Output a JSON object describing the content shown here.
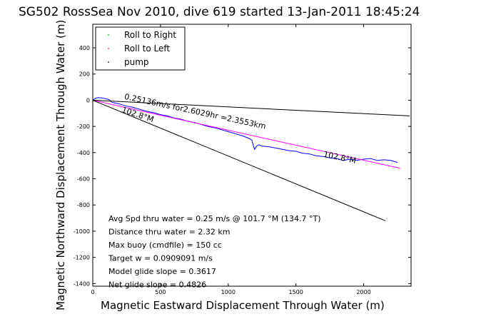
{
  "chart_data": {
    "type": "line",
    "title": "SG502 RossSea Nov 2010, dive 619 started 13-Jan-2011 18:45:24",
    "xlabel": "Magnetic Eastward Displacement Through Water (m)",
    "ylabel": "Magnetic Northward Displacement Through Water (m)",
    "xlim": [
      0,
      2350
    ],
    "ylim": [
      -1420,
      580
    ],
    "xticks": [
      0,
      500,
      1000,
      1500,
      2000
    ],
    "yticks": [
      -1400,
      -1200,
      -1000,
      -800,
      -600,
      -400,
      -200,
      0,
      200,
      400
    ],
    "grid": false,
    "legend": {
      "placement": "top-left",
      "entries": [
        {
          "name": "Roll to Right",
          "color": "#00aa00"
        },
        {
          "name": "Roll to Left",
          "color": "#ff0000"
        },
        {
          "name": "pump",
          "color": "#000000"
        }
      ]
    },
    "series": [
      {
        "color": "#0000ff",
        "x": [
          0,
          20,
          40,
          60,
          80,
          100,
          120,
          140,
          160,
          180,
          200,
          250,
          300,
          350,
          400,
          450,
          500,
          550,
          600,
          650,
          700,
          750,
          800,
          850,
          900,
          950,
          1000,
          1050,
          1100,
          1150,
          1175,
          1185,
          1195,
          1210,
          1225,
          1250,
          1300,
          1350,
          1400,
          1450,
          1500,
          1550,
          1600,
          1650,
          1700,
          1750,
          1800,
          1850,
          1900,
          1950,
          2000,
          2050,
          2100,
          2150,
          2200,
          2250
        ],
        "y": [
          0,
          15,
          20,
          18,
          15,
          10,
          5,
          -15,
          -20,
          -25,
          -30,
          -45,
          -55,
          -70,
          -85,
          -95,
          -110,
          -120,
          -135,
          -145,
          -160,
          -170,
          -185,
          -200,
          -210,
          -225,
          -240,
          -255,
          -270,
          -290,
          -305,
          -345,
          -375,
          -350,
          -340,
          -350,
          -355,
          -365,
          -375,
          -385,
          -390,
          -405,
          -410,
          -425,
          -430,
          -440,
          -445,
          -460,
          -450,
          -460,
          -450,
          -445,
          -460,
          -455,
          -460,
          -475
        ]
      },
      {
        "color": "#ff00ff",
        "x": [
          0,
          2270
        ],
        "y": [
          0,
          -520
        ]
      },
      {
        "color": "#000000",
        "x": [
          0,
          2340
        ],
        "y": [
          0,
          -120
        ]
      },
      {
        "color": "#000000",
        "x": [
          0,
          2160
        ],
        "y": [
          0,
          -920
        ]
      }
    ],
    "annotations": [
      {
        "text": "0.25136m/s for2.6029hr =2.3553km",
        "x": 230,
        "y": 10,
        "angle": 12
      },
      {
        "text": "102.8°M",
        "x": 210,
        "y": -90,
        "angle": 18
      },
      {
        "text": "102.8°M",
        "x": 1700,
        "y": -430,
        "angle": 12
      }
    ],
    "stats": [
      "Avg Spd thru water =  0.25 m/s @ 101.7   °M (134.7 °T)",
      "Distance thru water =  2.32 km",
      "Max buoy (cmdfile) = 150 cc",
      "Target w = 0.0909091 m/s",
      "Model glide slope = 0.3617",
      "Net glide slope = 0.4826"
    ]
  }
}
